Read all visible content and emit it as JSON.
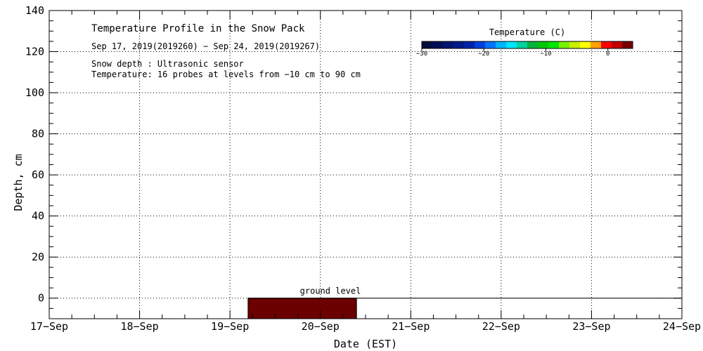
{
  "chart_data": {
    "type": "heatmap",
    "title": "Temperature Profile in the Snow Pack",
    "subtitle": "Sep 17, 2019(2019260) − Sep 24, 2019(2019267)",
    "notes": [
      "Snow depth : Ultrasonic sensor",
      "Temperature: 16 probes at levels from −10 cm to 90 cm"
    ],
    "xlabel": "Date (EST)",
    "ylabel": "Depth, cm",
    "x_ticks": [
      "17−Sep",
      "18−Sep",
      "19−Sep",
      "20−Sep",
      "21−Sep",
      "22−Sep",
      "23−Sep",
      "24−Sep"
    ],
    "ylim": [
      -10,
      140
    ],
    "y_ticks": [
      0,
      20,
      40,
      60,
      80,
      100,
      120,
      140
    ],
    "grid": true,
    "ground_level_label": "ground level",
    "ground_level_value": 0,
    "data_blocks": [
      {
        "x_start": 2.2,
        "x_end": 3.4,
        "y_start": -10,
        "y_end": 0,
        "temperature": 2,
        "color": "#6a0000"
      }
    ],
    "colorbar": {
      "title": "Temperature (C)",
      "range": [
        -30,
        4
      ],
      "tick_values": [
        -30,
        -20,
        -10,
        0
      ],
      "tick_labels": [
        "−30",
        "−20",
        "−10",
        "0"
      ],
      "colors": [
        "#000c3c",
        "#000f55",
        "#001470",
        "#001a8c",
        "#0022aa",
        "#0040dd",
        "#0073ff",
        "#00b4ff",
        "#00e6ff",
        "#00d2a0",
        "#00b43c",
        "#00c800",
        "#00e600",
        "#78f000",
        "#c8f000",
        "#ffff00",
        "#ffa000",
        "#ff0000",
        "#c00000",
        "#780000"
      ]
    }
  }
}
